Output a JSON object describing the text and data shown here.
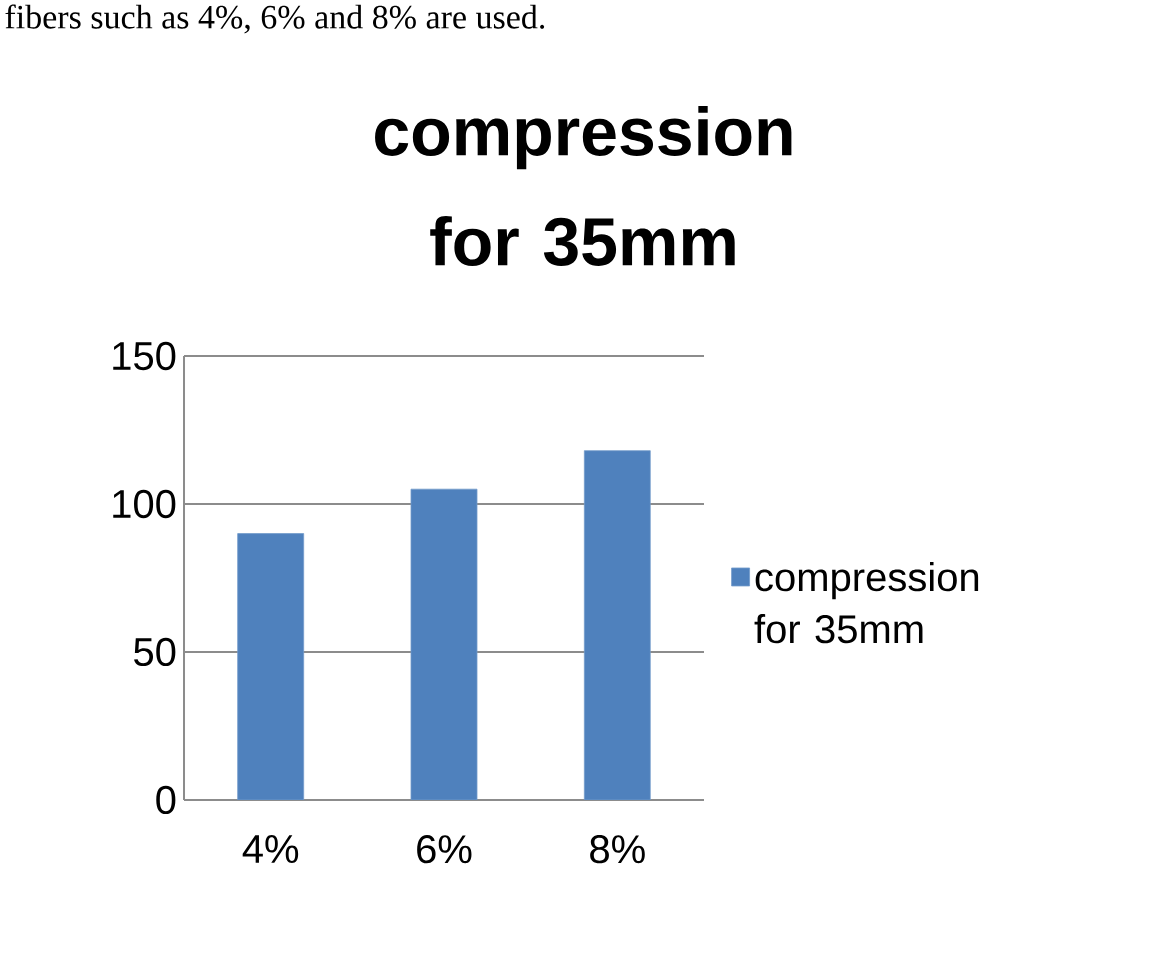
{
  "chart_data": {
    "type": "bar",
    "title": "compression for 35mm",
    "categories": [
      "4%",
      "6%",
      "8%"
    ],
    "series": [
      {
        "name": "compression for 35mm",
        "color": "#4f81bd",
        "values": [
          90,
          105,
          118
        ]
      }
    ],
    "ylim": [
      0,
      150
    ],
    "yticks": [
      0,
      50,
      100,
      150
    ],
    "grid": "y",
    "legend": "right",
    "annotations": [
      "fibers such as 4%, 6% and 8% are used."
    ]
  }
}
